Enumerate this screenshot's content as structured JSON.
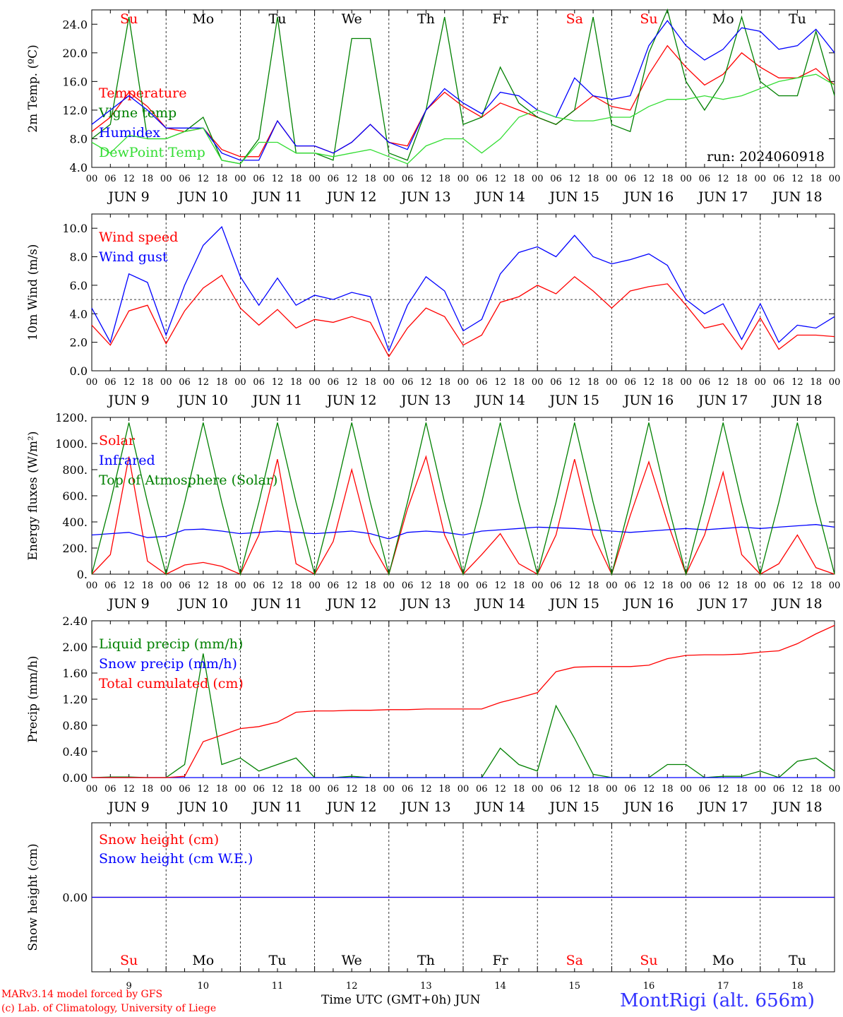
{
  "meta": {
    "run": "run: 2024060918"
  },
  "footer": {
    "model": "MARv3.14 model forced by GFS",
    "lab": "(c) Lab. of Climatology, University of Liege",
    "xlabel": "Time UTC (GMT+0h) JUN",
    "station": "MontRigi (alt. 656m)"
  },
  "colors": {
    "red": "#ff0000",
    "green": "#008000",
    "blue": "#0000ff",
    "light_green": "#33dd33",
    "purple": "#7f007f"
  },
  "chart_data": [
    {
      "type": "line",
      "panel": "temperature",
      "ylabel": "2m Temp. (ºC)",
      "ylim": [
        4,
        26
      ],
      "yticks": [
        "4.0",
        "8.0",
        "12.0",
        "16.0",
        "20.0",
        "24.0"
      ],
      "x_unit": "hours since 2024-06-09 00 UTC",
      "x": [
        0,
        6,
        12,
        18,
        24,
        30,
        36,
        42,
        48,
        54,
        60,
        66,
        72,
        78,
        84,
        90,
        96,
        102,
        108,
        114,
        120,
        126,
        132,
        138,
        144,
        150,
        156,
        162,
        168,
        174,
        180,
        186,
        192,
        198,
        204,
        210,
        216,
        222,
        228,
        234,
        240
      ],
      "day_labels": [
        "Su",
        "Mo",
        "Tu",
        "We",
        "Th",
        "Fr",
        "Sa",
        "Su",
        "Mo",
        "Tu"
      ],
      "day_label_colors": [
        "#ff0000",
        "#000000",
        "#000000",
        "#000000",
        "#000000",
        "#000000",
        "#ff0000",
        "#ff0000",
        "#000000",
        "#000000"
      ],
      "hour_ticks": [
        "00",
        "06",
        "12",
        "18"
      ],
      "date_labels": [
        "JUN  9",
        "JUN 10",
        "JUN 11",
        "JUN 12",
        "JUN 13",
        "JUN 14",
        "JUN 15",
        "JUN 16",
        "JUN 17",
        "JUN 18"
      ],
      "annotation": "run: 2024060918",
      "series": [
        {
          "name": "Temperature",
          "color": "#ff0000",
          "values": [
            9.0,
            11.0,
            14.5,
            12.5,
            9.5,
            9.0,
            9.5,
            6.5,
            5.5,
            5.5,
            10.5,
            7.0,
            7.0,
            6.0,
            7.5,
            10.0,
            7.5,
            7.0,
            12.0,
            14.5,
            12.5,
            11.0,
            13.0,
            12.0,
            11.0,
            10.0,
            12.0,
            14.0,
            12.5,
            12.0,
            17.0,
            21.0,
            18.0,
            15.5,
            17.0,
            20.0,
            18.0,
            16.5,
            16.5,
            17.8,
            15.5
          ]
        },
        {
          "name": "Vigne temp",
          "color": "#008000",
          "values": [
            8.0,
            10.0,
            25.0,
            8.0,
            8.0,
            9.0,
            11.0,
            5.0,
            4.5,
            8.0,
            25.0,
            6.0,
            6.0,
            5.0,
            22.0,
            22.0,
            6.0,
            5.0,
            12.0,
            25.0,
            10.0,
            11.0,
            18.0,
            13.0,
            11.0,
            10.0,
            12.0,
            25.0,
            10.0,
            9.0,
            20.0,
            26.0,
            16.0,
            12.0,
            16.0,
            25.0,
            16.0,
            14.0,
            14.0,
            23.0,
            14.0
          ]
        },
        {
          "name": "Humidex",
          "color": "#0000ff",
          "values": [
            10.0,
            12.0,
            14.0,
            12.0,
            9.5,
            9.5,
            9.5,
            6.0,
            5.0,
            5.0,
            10.5,
            7.0,
            7.0,
            6.0,
            7.5,
            10.0,
            7.5,
            6.5,
            12.0,
            15.0,
            13.0,
            11.5,
            14.5,
            14.0,
            12.0,
            11.0,
            16.5,
            14.0,
            13.5,
            14.0,
            21.0,
            24.5,
            21.0,
            19.0,
            20.5,
            23.5,
            23.0,
            20.5,
            21.0,
            23.3,
            20.0
          ]
        },
        {
          "name": "DewPoint Temp",
          "color": "#33dd33",
          "values": [
            7.5,
            6.0,
            8.5,
            8.0,
            8.0,
            9.0,
            9.5,
            5.0,
            4.5,
            7.5,
            7.5,
            6.0,
            6.0,
            5.5,
            6.0,
            6.5,
            5.5,
            4.5,
            7.0,
            8.0,
            8.0,
            6.0,
            8.0,
            11.0,
            12.0,
            11.0,
            10.5,
            10.5,
            11.0,
            11.0,
            12.5,
            13.5,
            13.5,
            14.0,
            13.5,
            14.0,
            15.0,
            16.0,
            16.5,
            17.0,
            15.5
          ]
        }
      ]
    },
    {
      "type": "line",
      "panel": "wind",
      "ylabel": "10m Wind (m/s)",
      "ylim": [
        0,
        11
      ],
      "yticks": [
        "0.0",
        "2.0",
        "4.0",
        "6.0",
        "8.0",
        "10.0"
      ],
      "reference_line": 5.0,
      "x_unit": "hours since 2024-06-09 00 UTC",
      "x": [
        0,
        6,
        12,
        18,
        24,
        30,
        36,
        42,
        48,
        54,
        60,
        66,
        72,
        78,
        84,
        90,
        96,
        102,
        108,
        114,
        120,
        126,
        132,
        138,
        144,
        150,
        156,
        162,
        168,
        174,
        180,
        186,
        192,
        198,
        204,
        210,
        216,
        222,
        228,
        234,
        240
      ],
      "hour_ticks": [
        "00",
        "06",
        "12",
        "18"
      ],
      "date_labels": [
        "JUN  9",
        "JUN 10",
        "JUN 11",
        "JUN 12",
        "JUN 13",
        "JUN 14",
        "JUN 15",
        "JUN 16",
        "JUN 17",
        "JUN 18"
      ],
      "series": [
        {
          "name": "Wind speed",
          "color": "#ff0000",
          "values": [
            3.2,
            1.8,
            4.2,
            4.6,
            1.9,
            4.2,
            5.8,
            6.7,
            4.4,
            3.2,
            4.3,
            3.0,
            3.6,
            3.4,
            3.8,
            3.4,
            1.0,
            3.0,
            4.4,
            3.8,
            1.8,
            2.5,
            4.8,
            5.2,
            6.0,
            5.4,
            6.6,
            5.6,
            4.4,
            5.6,
            5.9,
            6.1,
            4.6,
            3.0,
            3.3,
            1.5,
            3.7,
            1.5,
            2.5,
            2.5,
            2.4
          ]
        },
        {
          "name": "Wind gust",
          "color": "#0000ff",
          "values": [
            4.4,
            2.0,
            6.8,
            6.2,
            2.5,
            6.0,
            8.8,
            10.1,
            6.6,
            4.6,
            6.5,
            4.6,
            5.3,
            5.0,
            5.5,
            5.2,
            1.4,
            4.6,
            6.6,
            5.6,
            2.8,
            3.6,
            6.8,
            8.3,
            8.7,
            8.0,
            9.5,
            8.0,
            7.5,
            7.8,
            8.2,
            7.4,
            5.0,
            4.0,
            4.7,
            2.2,
            4.7,
            2.0,
            3.2,
            3.0,
            3.8
          ]
        }
      ]
    },
    {
      "type": "line",
      "panel": "energy",
      "ylabel": "Energy fluxes (W/m²)",
      "ylim": [
        0,
        1200
      ],
      "yticks": [
        "0.",
        "200.",
        "400.",
        "600.",
        "800.",
        "1000.",
        "1200."
      ],
      "x_unit": "hours since 2024-06-09 00 UTC",
      "x": [
        0,
        6,
        12,
        18,
        24,
        30,
        36,
        42,
        48,
        54,
        60,
        66,
        72,
        78,
        84,
        90,
        96,
        102,
        108,
        114,
        120,
        126,
        132,
        138,
        144,
        150,
        156,
        162,
        168,
        174,
        180,
        186,
        192,
        198,
        204,
        210,
        216,
        222,
        228,
        234,
        240
      ],
      "hour_ticks": [
        "00",
        "06",
        "12",
        "18"
      ],
      "date_labels": [
        "JUN  9",
        "JUN 10",
        "JUN 11",
        "JUN 12",
        "JUN 13",
        "JUN 14",
        "JUN 15",
        "JUN 16",
        "JUN 17",
        "JUN 18"
      ],
      "series": [
        {
          "name": "Solar",
          "color": "#ff0000",
          "values": [
            0,
            150,
            900,
            100,
            0,
            70,
            90,
            60,
            0,
            300,
            880,
            80,
            0,
            250,
            800,
            250,
            0,
            500,
            900,
            300,
            0,
            150,
            310,
            80,
            0,
            300,
            880,
            300,
            0,
            450,
            860,
            400,
            0,
            300,
            780,
            150,
            0,
            80,
            300,
            50,
            0
          ]
        },
        {
          "name": "Infrared",
          "color": "#0000ff",
          "values": [
            300,
            310,
            320,
            280,
            290,
            340,
            345,
            330,
            310,
            320,
            330,
            320,
            310,
            320,
            330,
            310,
            270,
            320,
            330,
            320,
            300,
            330,
            340,
            350,
            360,
            355,
            350,
            340,
            330,
            320,
            330,
            340,
            350,
            340,
            350,
            360,
            350,
            360,
            370,
            380,
            360
          ]
        },
        {
          "name": "Top of Atmosphere (Solar)",
          "color": "#008000",
          "values": [
            0,
            550,
            1160,
            550,
            0,
            550,
            1160,
            550,
            0,
            550,
            1160,
            550,
            0,
            550,
            1160,
            550,
            0,
            550,
            1160,
            550,
            0,
            550,
            1160,
            550,
            0,
            550,
            1160,
            550,
            0,
            550,
            1160,
            550,
            0,
            550,
            1160,
            550,
            0,
            550,
            1160,
            550,
            0
          ]
        }
      ]
    },
    {
      "type": "line",
      "panel": "precip",
      "ylabel": "Precip (mm/h)",
      "ylim": [
        0,
        2.4
      ],
      "yticks": [
        "0.00",
        "0.40",
        "0.80",
        "1.20",
        "1.60",
        "2.00",
        "2.40"
      ],
      "x_unit": "hours since 2024-06-09 00 UTC",
      "x": [
        0,
        6,
        12,
        18,
        24,
        30,
        36,
        42,
        48,
        54,
        60,
        66,
        72,
        78,
        84,
        90,
        96,
        102,
        108,
        114,
        120,
        126,
        132,
        138,
        144,
        150,
        156,
        162,
        168,
        174,
        180,
        186,
        192,
        198,
        204,
        210,
        216,
        222,
        228,
        234,
        240
      ],
      "hour_ticks": [
        "00",
        "06",
        "12",
        "18"
      ],
      "date_labels": [
        "JUN  9",
        "JUN 10",
        "JUN 11",
        "JUN 12",
        "JUN 13",
        "JUN 14",
        "JUN 15",
        "JUN 16",
        "JUN 17",
        "JUN 18"
      ],
      "series": [
        {
          "name": "Liquid precip (mm/h)",
          "color": "#008000",
          "values": [
            0,
            0.01,
            0.01,
            0,
            0,
            0.2,
            1.9,
            0.2,
            0.3,
            0.1,
            0.2,
            0.3,
            0,
            0,
            0.02,
            0,
            0,
            0,
            0,
            0,
            0,
            0,
            0.45,
            0.2,
            0.1,
            1.1,
            0.6,
            0.05,
            0,
            0,
            0,
            0.2,
            0.2,
            0,
            0.02,
            0.02,
            0.1,
            0,
            0.25,
            0.3,
            0.1
          ]
        },
        {
          "name": "Snow precip (mm/h)",
          "color": "#0000ff",
          "values": [
            0,
            0,
            0,
            0,
            0,
            0,
            0,
            0,
            0,
            0,
            0,
            0,
            0,
            0,
            0,
            0,
            0,
            0,
            0,
            0,
            0,
            0,
            0,
            0,
            0,
            0,
            0,
            0,
            0,
            0,
            0,
            0,
            0,
            0,
            0,
            0,
            0,
            0,
            0,
            0,
            0
          ]
        },
        {
          "name": "Total cumulated (cm)",
          "color": "#ff0000",
          "values": [
            0,
            0,
            0,
            0,
            0,
            0.02,
            0.55,
            0.65,
            0.75,
            0.78,
            0.85,
            1.0,
            1.02,
            1.02,
            1.03,
            1.03,
            1.04,
            1.04,
            1.05,
            1.05,
            1.05,
            1.05,
            1.15,
            1.22,
            1.3,
            1.62,
            1.69,
            1.7,
            1.7,
            1.7,
            1.72,
            1.82,
            1.87,
            1.88,
            1.88,
            1.89,
            1.92,
            1.94,
            2.05,
            2.2,
            2.33
          ]
        }
      ]
    },
    {
      "type": "line",
      "panel": "snow",
      "ylabel": "Snow height (cm)",
      "ylim": [
        -1,
        1
      ],
      "yticks": [
        "0.00"
      ],
      "x_unit": "hours since 2024-06-09 00 UTC",
      "x": [
        0,
        240
      ],
      "day_labels": [
        "Su",
        "Mo",
        "Tu",
        "We",
        "Th",
        "Fr",
        "Sa",
        "Su",
        "Mo",
        "Tu"
      ],
      "day_label_colors": [
        "#ff0000",
        "#000000",
        "#000000",
        "#000000",
        "#000000",
        "#000000",
        "#ff0000",
        "#ff0000",
        "#000000",
        "#000000"
      ],
      "day_numbers": [
        "9",
        "10",
        "11",
        "12",
        "13",
        "14",
        "15",
        "16",
        "17",
        "18"
      ],
      "series": [
        {
          "name": "Snow height (cm)",
          "color": "#ff0000",
          "values": [
            0,
            0
          ]
        },
        {
          "name": "Snow height (cm W.E.)",
          "color": "#0000ff",
          "values": [
            0,
            0
          ]
        }
      ]
    }
  ]
}
